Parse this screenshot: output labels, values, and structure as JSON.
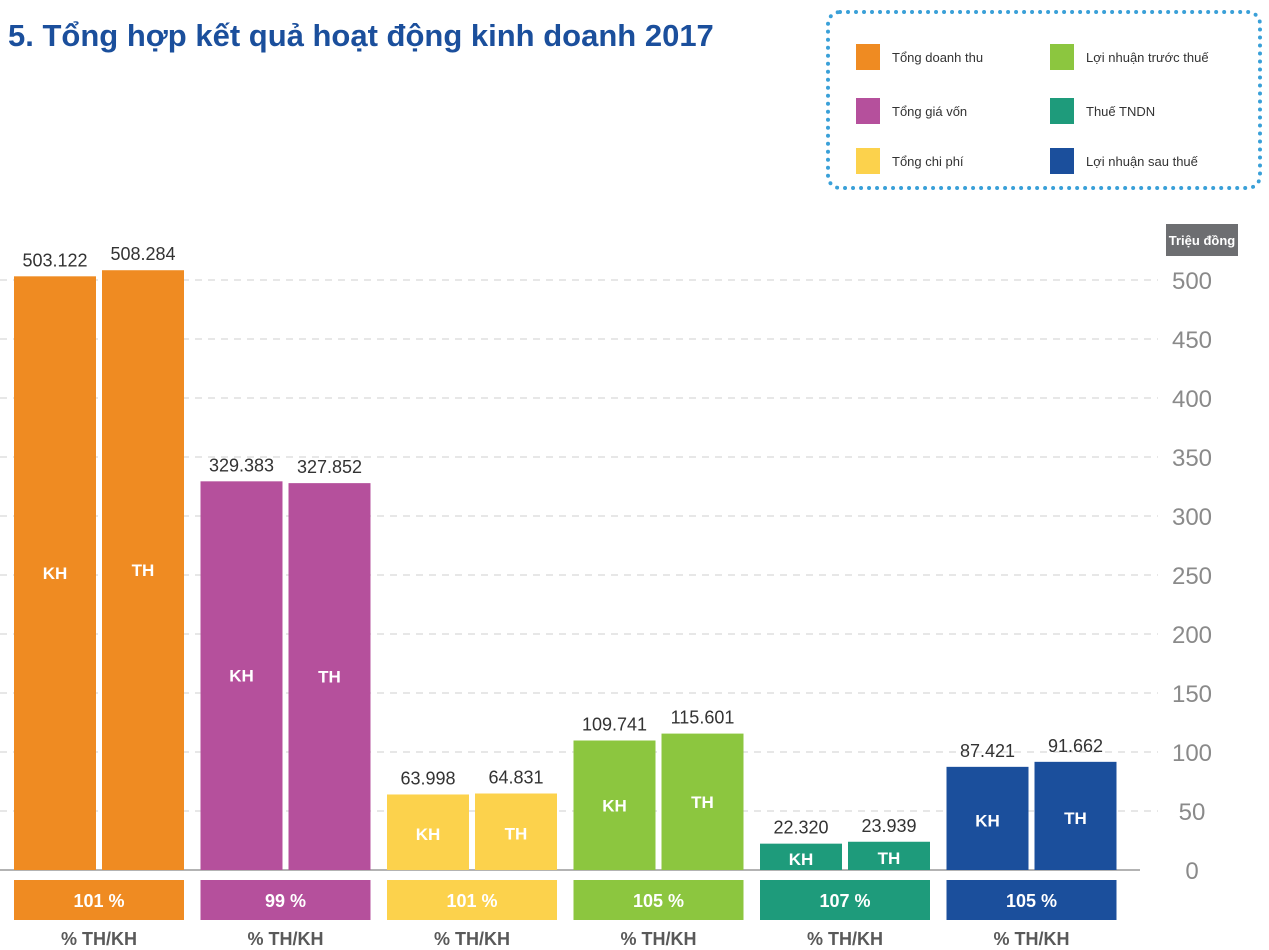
{
  "title": "5. Tổng hợp kết quả hoạt động kinh doanh 2017",
  "legend": {
    "items": [
      {
        "label": "Tổng doanh thu",
        "color": "#ef8b22"
      },
      {
        "label": "Tổng giá vốn",
        "color": "#b5509c"
      },
      {
        "label": "Tổng chi phí",
        "color": "#fcd24c"
      },
      {
        "label": "Lợi nhuận trước thuế",
        "color": "#8cc63f"
      },
      {
        "label": "Thuế TNDN",
        "color": "#1e9b7b"
      },
      {
        "label": "Lợi nhuận sau thuế",
        "color": "#1b4f9c"
      }
    ]
  },
  "chart_data": {
    "type": "bar",
    "unit_label": "Triệu đồng",
    "ylim": [
      0,
      500
    ],
    "yticks": [
      0,
      50,
      100,
      150,
      200,
      250,
      300,
      350,
      400,
      450,
      500
    ],
    "grid": true,
    "bar_labels": [
      "KH",
      "TH"
    ],
    "footer_label": "% TH/KH",
    "groups": [
      {
        "name": "Tổng doanh thu",
        "color": "#ef8b22",
        "kh": 503.122,
        "th": 508.284,
        "kh_label": "503.122",
        "th_label": "508.284",
        "percent": "101 %"
      },
      {
        "name": "Tổng giá vốn",
        "color": "#b5509c",
        "kh": 329.383,
        "th": 327.852,
        "kh_label": "329.383",
        "th_label": "327.852",
        "percent": "99 %"
      },
      {
        "name": "Tổng chi phí",
        "color": "#fcd24c",
        "kh": 63.998,
        "th": 64.831,
        "kh_label": "63.998",
        "th_label": "64.831",
        "percent": "101 %"
      },
      {
        "name": "Lợi nhuận trước thuế",
        "color": "#8cc63f",
        "kh": 109.741,
        "th": 115.601,
        "kh_label": "109.741",
        "th_label": "115.601",
        "percent": "105 %"
      },
      {
        "name": "Thuế TNDN",
        "color": "#1e9b7b",
        "kh": 22.32,
        "th": 23.939,
        "kh_label": "22.320",
        "th_label": "23.939",
        "percent": "107 %"
      },
      {
        "name": "Lợi nhuận sau thuế",
        "color": "#1b4f9c",
        "kh": 87.421,
        "th": 91.662,
        "kh_label": "87.421",
        "th_label": "91.662",
        "percent": "105 %"
      }
    ]
  }
}
